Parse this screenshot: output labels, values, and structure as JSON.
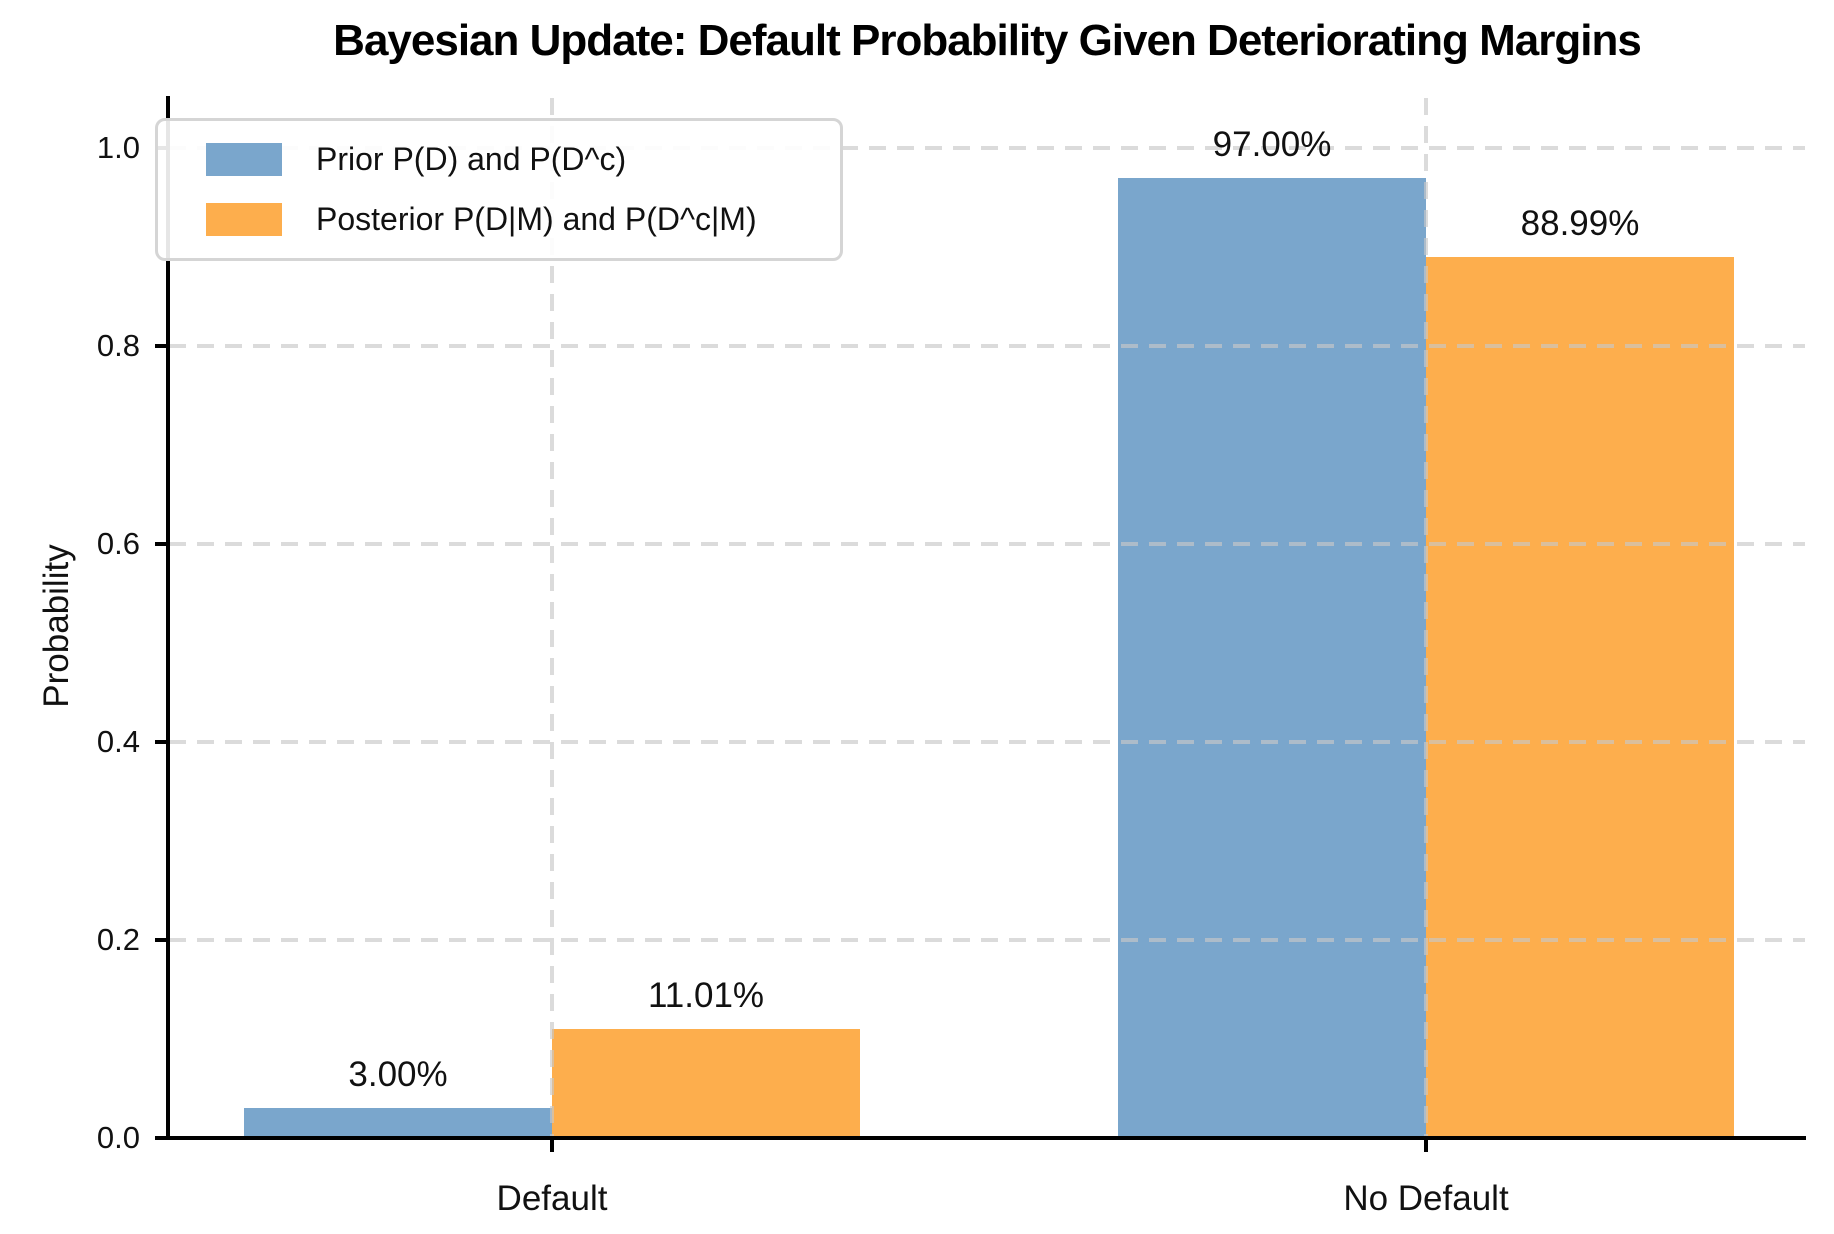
{
  "chart_data": {
    "type": "bar",
    "title": "Bayesian Update: Default Probability Given Deteriorating Margins",
    "xlabel": "",
    "ylabel": "Probability",
    "categories": [
      "Default",
      "No Default"
    ],
    "series": [
      {
        "name": "Prior P(D) and P(D^c)",
        "color": "#7AA6CC",
        "values": [
          0.03,
          0.97
        ],
        "labels": [
          "3.00%",
          "97.00%"
        ]
      },
      {
        "name": "Posterior P(D|M) and P(D^c|M)",
        "color": "#FDAE4D",
        "values": [
          0.1101,
          0.8899
        ],
        "labels": [
          "11.01%",
          "88.99%"
        ]
      }
    ],
    "ylim": [
      0.0,
      1.05
    ],
    "yticks": [
      {
        "value": 0.0,
        "label": "0.0"
      },
      {
        "value": 0.2,
        "label": "0.2"
      },
      {
        "value": 0.4,
        "label": "0.4"
      },
      {
        "value": 0.6,
        "label": "0.6"
      },
      {
        "value": 0.8,
        "label": "0.8"
      },
      {
        "value": 1.0,
        "label": "1.0"
      }
    ],
    "grid": "dashed-both-axes-over-bars",
    "legend_position": "upper-left"
  },
  "colors": {
    "prior_blue": "#7AA6CC",
    "posterior_orange": "#FDAE4D",
    "gridline": "#C8C8C8",
    "axis": "#000000",
    "text": "#111111",
    "legend_border": "#D5D5D5",
    "background": "#FFFFFF"
  }
}
